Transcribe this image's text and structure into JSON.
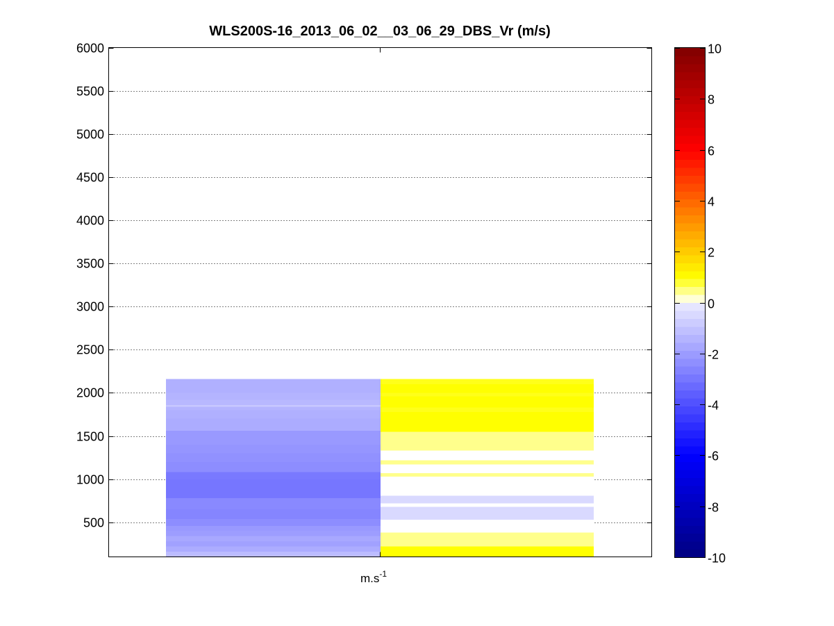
{
  "chart_data": {
    "type": "heatmap",
    "title": "WLS200S-16_2013_06_02__03_06_29_DBS_Vr (m/s)",
    "xlabel": "m.s",
    "xlabel_sup": "-1",
    "ylabel": "",
    "ylim": [
      100,
      6000
    ],
    "yticks": [
      500,
      1000,
      1500,
      2000,
      2500,
      3000,
      3500,
      4000,
      4500,
      5000,
      5500,
      6000
    ],
    "grid": "y-dotted",
    "colorbar": {
      "min": -10,
      "max": 10,
      "ticks": [
        10,
        8,
        6,
        4,
        2,
        0,
        -2,
        -4,
        -6,
        -8,
        -10
      ],
      "placement": "right"
    },
    "columns": [
      {
        "name": "",
        "cells": [
          {
            "y": [
              100,
              160
            ],
            "v": -1.2
          },
          {
            "y": [
              160,
              220
            ],
            "v": -1.6
          },
          {
            "y": [
              220,
              280
            ],
            "v": -1.9
          },
          {
            "y": [
              280,
              340
            ],
            "v": -1.7
          },
          {
            "y": [
              340,
              400
            ],
            "v": -2.0
          },
          {
            "y": [
              400,
              460
            ],
            "v": -2.1
          },
          {
            "y": [
              460,
              540
            ],
            "v": -2.4
          },
          {
            "y": [
              540,
              650
            ],
            "v": -2.6
          },
          {
            "y": [
              650,
              780
            ],
            "v": -2.5
          },
          {
            "y": [
              780,
              1000
            ],
            "v": -3.0
          },
          {
            "y": [
              1000,
              1080
            ],
            "v": -2.9
          },
          {
            "y": [
              1080,
              1200
            ],
            "v": -2.4
          },
          {
            "y": [
              1200,
              1300
            ],
            "v": -2.3
          },
          {
            "y": [
              1300,
              1400
            ],
            "v": -2.2
          },
          {
            "y": [
              1400,
              1560
            ],
            "v": -2.1
          },
          {
            "y": [
              1560,
              1700
            ],
            "v": -1.6
          },
          {
            "y": [
              1700,
              1800
            ],
            "v": -1.5
          },
          {
            "y": [
              1800,
              1840
            ],
            "v": -1.4
          },
          {
            "y": [
              1840,
              1860
            ],
            "v": -0.9
          },
          {
            "y": [
              1860,
              1920
            ],
            "v": -1.3
          },
          {
            "y": [
              1920,
              2000
            ],
            "v": -1.4
          },
          {
            "y": [
              2000,
              2160
            ],
            "v": -1.5
          }
        ]
      },
      {
        "name": "",
        "cells": [
          {
            "y": [
              100,
              220
            ],
            "v": 1.0
          },
          {
            "y": [
              220,
              380
            ],
            "v": 0.45
          },
          {
            "y": [
              380,
              530
            ],
            "v": 0.0
          },
          {
            "y": [
              530,
              680
            ],
            "v": -0.45
          },
          {
            "y": [
              680,
              720
            ],
            "v": 0.0
          },
          {
            "y": [
              720,
              810
            ],
            "v": -0.45
          },
          {
            "y": [
              810,
              1030
            ],
            "v": 0.0
          },
          {
            "y": [
              1030,
              1070
            ],
            "v": 0.45
          },
          {
            "y": [
              1070,
              1170
            ],
            "v": 0.0
          },
          {
            "y": [
              1170,
              1220
            ],
            "v": 0.45
          },
          {
            "y": [
              1220,
              1330
            ],
            "v": 0.0
          },
          {
            "y": [
              1330,
              1550
            ],
            "v": 0.45
          },
          {
            "y": [
              1550,
              1780
            ],
            "v": 1.0
          },
          {
            "y": [
              1780,
              1830
            ],
            "v": 0.9
          },
          {
            "y": [
              1830,
              1960
            ],
            "v": 1.0
          },
          {
            "y": [
              1960,
              2000
            ],
            "v": 0.9
          },
          {
            "y": [
              2000,
              2100
            ],
            "v": 1.0
          },
          {
            "y": [
              2100,
              2160
            ],
            "v": 0.9
          }
        ]
      }
    ]
  }
}
